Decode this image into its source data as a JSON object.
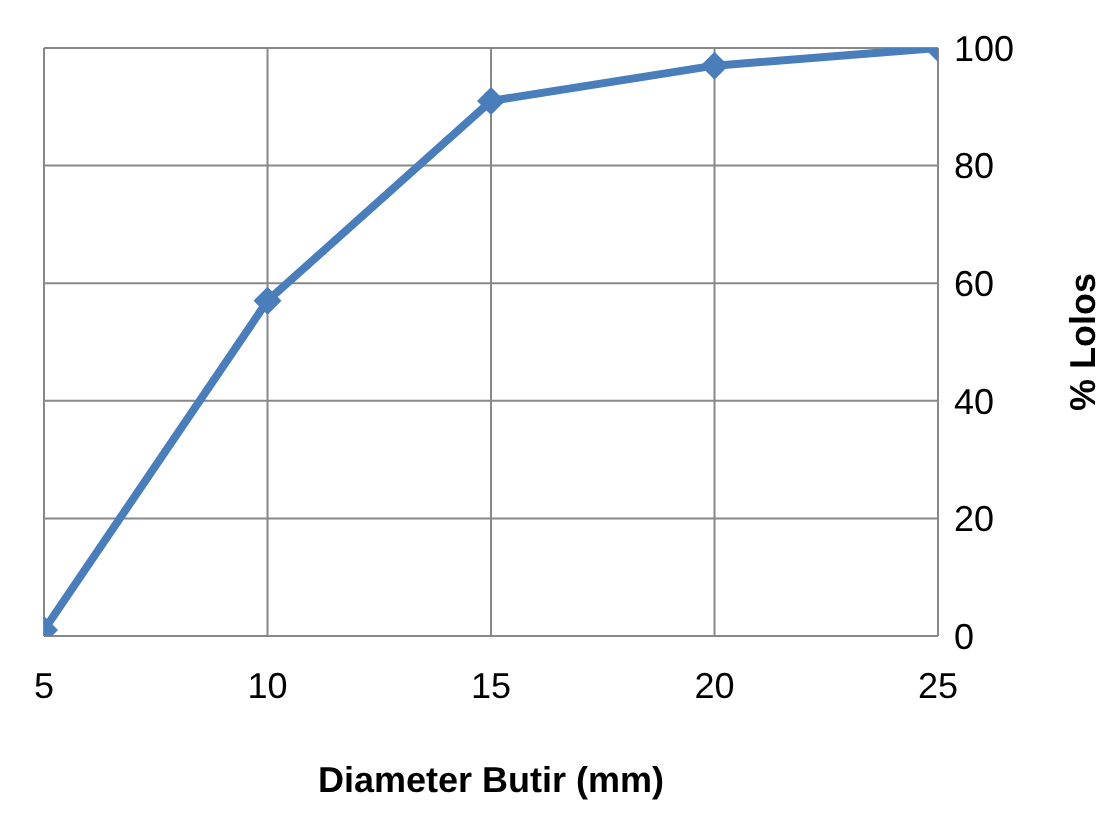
{
  "chart_data": {
    "type": "line",
    "xlabel": "Diameter Butir (mm)",
    "ylabel": "% Lolos",
    "x": [
      5,
      10,
      15,
      20,
      25
    ],
    "series": [
      {
        "color": "#4a7ebb",
        "values": [
          1,
          57,
          91,
          97,
          100
        ]
      }
    ],
    "xlim": [
      5,
      25
    ],
    "xticks": [
      5,
      10,
      15,
      20,
      25
    ],
    "ylim": [
      0,
      100
    ],
    "yticks": [
      0,
      20,
      40,
      60,
      80,
      100
    ],
    "grid": true,
    "marker": "diamond",
    "line_style": "solid",
    "legend": false
  }
}
